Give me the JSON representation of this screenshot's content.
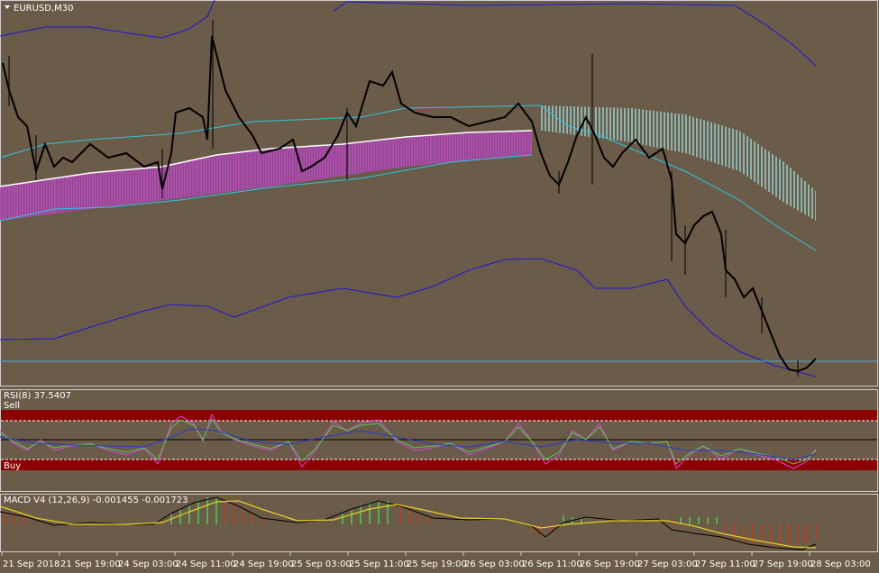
{
  "symbol_panel": {
    "title": "EURUSD,M30"
  },
  "rsi_panel": {
    "title": "RSI(8) 37.5407",
    "sell_label": "Sell",
    "buy_label": "Buy"
  },
  "macd_panel": {
    "title": "MACD V4 (12,26,9) -0.001455 -0.001723"
  },
  "time_axis": {
    "labels": [
      "21 Sep 2018",
      "21 Sep 19:00",
      "24 Sep 03:00",
      "24 Sep 11:00",
      "24 Sep 19:00",
      "25 Sep 03:00",
      "25 Sep 11:00",
      "25 Sep 19:00",
      "26 Sep 03:00",
      "26 Sep 11:00",
      "26 Sep 19:00",
      "27 Sep 03:00",
      "27 Sep 11:00",
      "27 Sep 19:00",
      "28 Sep 03:00"
    ]
  }
}
